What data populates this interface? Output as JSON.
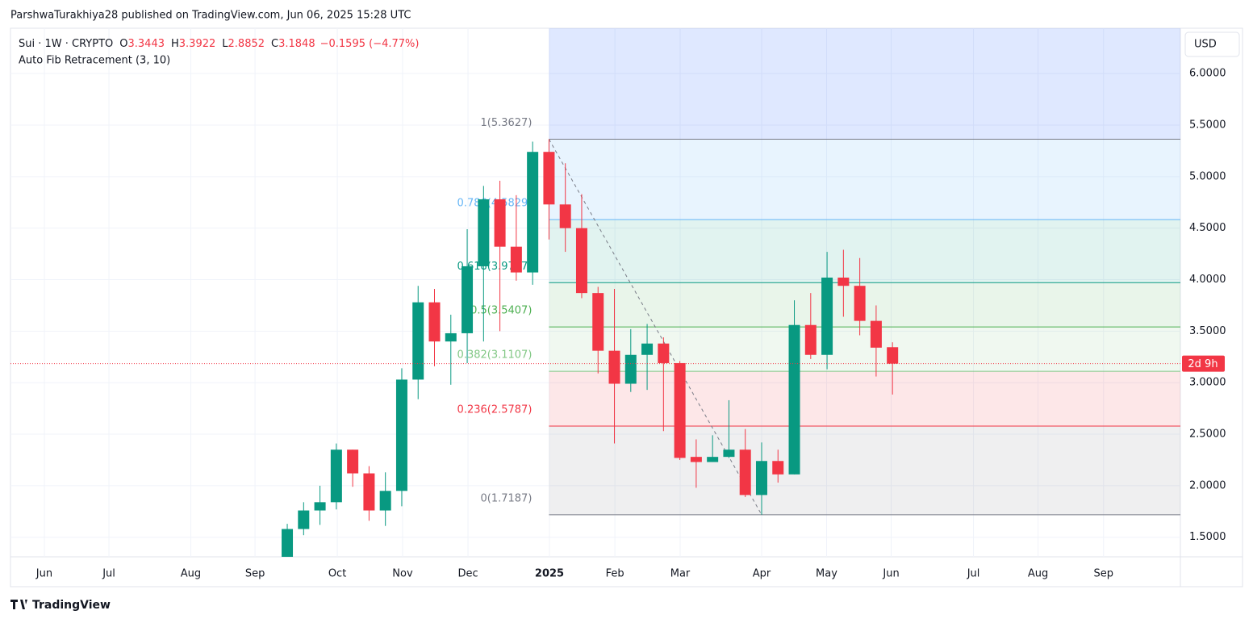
{
  "header": {
    "published": "ParshwaTurakhiya28 published on TradingView.com, Jun 06, 2025 15:28 UTC",
    "symbol": "Sui · 1W · CRYPTO",
    "ohlc_letters": [
      "O",
      "H",
      "L",
      "C"
    ],
    "change": "−0.1595 (−4.77%)",
    "logo": "TradingView"
  },
  "chart_data": {
    "type": "candlestick",
    "up_color": "#089981",
    "down_color": "#f23645",
    "open": [
      1.3,
      1.58,
      1.76,
      1.84,
      2.35,
      2.12,
      1.76,
      1.95,
      3.03,
      3.78,
      3.4,
      3.48,
      4.13,
      4.78,
      4.32,
      4.07,
      5.24,
      4.73,
      4.5,
      3.87,
      3.31,
      2.99,
      3.27,
      3.38,
      3.19,
      2.28,
      2.23,
      2.28,
      2.35,
      1.91,
      2.24,
      2.11,
      3.56,
      3.27,
      4.02,
      3.94,
      3.6,
      3.3443
    ],
    "high": [
      1.63,
      1.84,
      2.0,
      2.41,
      2.35,
      2.19,
      2.13,
      3.14,
      3.94,
      3.91,
      3.66,
      4.49,
      4.91,
      4.96,
      4.82,
      5.34,
      5.3627,
      5.13,
      4.83,
      3.93,
      3.91,
      3.52,
      3.57,
      3.44,
      3.21,
      2.45,
      2.49,
      2.83,
      2.55,
      2.42,
      2.35,
      3.8,
      3.87,
      4.27,
      4.29,
      4.21,
      3.75,
      3.3922
    ],
    "low": [
      1.28,
      1.52,
      1.62,
      1.77,
      1.99,
      1.66,
      1.61,
      1.8,
      2.84,
      3.16,
      2.98,
      3.19,
      3.4,
      3.5,
      3.99,
      3.95,
      4.39,
      4.27,
      3.82,
      3.09,
      2.41,
      2.91,
      2.93,
      2.53,
      2.25,
      1.98,
      2.23,
      2.27,
      1.89,
      1.7187,
      2.03,
      2.11,
      3.23,
      3.13,
      3.64,
      3.46,
      3.06,
      2.8852
    ],
    "close": [
      1.58,
      1.76,
      1.84,
      2.35,
      2.12,
      1.76,
      1.95,
      3.03,
      3.78,
      3.4,
      3.48,
      4.13,
      4.78,
      4.32,
      4.07,
      5.24,
      4.73,
      4.5,
      3.87,
      3.31,
      2.99,
      3.27,
      3.38,
      3.19,
      2.27,
      2.23,
      2.28,
      2.35,
      1.91,
      2.24,
      2.11,
      3.56,
      3.27,
      4.02,
      3.94,
      3.6,
      3.34,
      3.1848
    ],
    "ylim": [
      1.31,
      6.44
    ],
    "yticks": [
      {
        "value": 1.5,
        "label": "1.5000"
      },
      {
        "value": 2,
        "label": "2.0000"
      },
      {
        "value": 2.5,
        "label": "2.5000"
      },
      {
        "value": 3,
        "label": "3.0000"
      },
      {
        "value": 3.5,
        "label": "3.5000"
      },
      {
        "value": 4,
        "label": "4.0000"
      },
      {
        "value": 4.5,
        "label": "4.5000"
      },
      {
        "value": 5,
        "label": "5.0000"
      },
      {
        "value": 5.5,
        "label": "5.5000"
      },
      {
        "value": 6,
        "label": "6.0000"
      }
    ],
    "xlim": [
      -16.92,
      54.6
    ],
    "xticks": [
      {
        "value": -14.85,
        "label": "Jun"
      },
      {
        "value": -10.9,
        "label": "Jul"
      },
      {
        "value": -5.9,
        "label": "Aug"
      },
      {
        "value": -1.97,
        "label": "Sep"
      },
      {
        "value": 3.06,
        "label": "Oct"
      },
      {
        "value": 7.05,
        "label": "Nov"
      },
      {
        "value": 11.05,
        "label": "Dec"
      },
      {
        "value": 16.03,
        "label": "2025"
      },
      {
        "value": 20.03,
        "label": "Feb"
      },
      {
        "value": 24.02,
        "label": "Mar"
      },
      {
        "value": 29.0,
        "label": "Apr"
      },
      {
        "value": 32.97,
        "label": "May"
      },
      {
        "value": 36.92,
        "label": "Jun"
      },
      {
        "value": 41.95,
        "label": "Jul"
      },
      {
        "value": 45.9,
        "label": "Aug"
      },
      {
        "value": 49.9,
        "label": "Sep"
      }
    ],
    "grid": true,
    "currency": "USD",
    "countdown": "2d 9h",
    "fib": {
      "title": "Auto Fib Retracement (3, 10)",
      "levels": [
        {
          "label": "1(5.3627)",
          "value": 5.3627,
          "color": "#787b86"
        },
        {
          "label": "0.786(4.5829)",
          "value": 4.5829,
          "color": "#64b5f6"
        },
        {
          "label": "0.618(3.9707)",
          "value": 3.9707,
          "color": "#089981"
        },
        {
          "label": "0.5(3.5407)",
          "value": 3.5407,
          "color": "#4caf50"
        },
        {
          "label": "0.382(3.1107)",
          "value": 3.1107,
          "color": "#81c784"
        },
        {
          "label": "0.236(2.5787)",
          "value": 2.5787,
          "color": "#f23645"
        },
        {
          "label": "0(1.7187)",
          "value": 1.7187,
          "color": "#787b86"
        }
      ]
    }
  }
}
